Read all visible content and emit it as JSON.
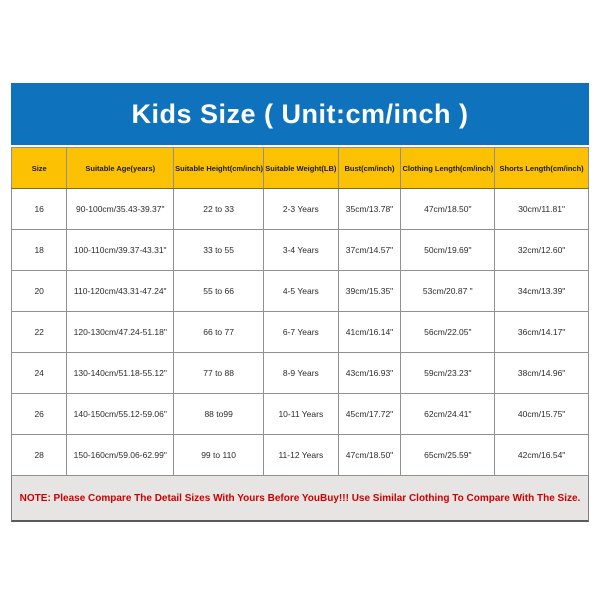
{
  "title": "Kids Size ( Unit:cm/inch )",
  "table": {
    "columns": [
      "Size",
      "Suitable Age(years)",
      "Suitable Height(cm/inch)",
      "Suitable Weight(LB)",
      "Bust(cm/inch)",
      "Clothing Length(cm/inch)",
      "Shorts Length(cm/inch)"
    ],
    "rows": [
      [
        "16",
        "90-100cm/35.43-39.37\"",
        "22 to 33",
        "2-3 Years",
        "35cm/13.78\"",
        "47cm/18.50\"",
        "30cm/11.81\""
      ],
      [
        "18",
        "100-110cm/39.37-43.31\"",
        "33 to 55",
        "3-4 Years",
        "37cm/14.57\"",
        "50cm/19.69\"",
        "32cm/12.60\""
      ],
      [
        "20",
        "110-120cm/43.31-47.24\"",
        "55 to 66",
        "4-5 Years",
        "39cm/15.35\"",
        "53cm/20.87 \"",
        "34cm/13.39\""
      ],
      [
        "22",
        "120-130cm/47.24-51.18\"",
        "66 to 77",
        "6-7 Years",
        "41cm/16.14\"",
        "56cm/22.05\"",
        "36cm/14.17\""
      ],
      [
        "24",
        "130-140cm/51.18-55.12\"",
        "77 to 88",
        "8-9 Years",
        "43cm/16.93\"",
        "59cm/23.23\"",
        "38cm/14.96\""
      ],
      [
        "26",
        "140-150cm/55.12-59.06\"",
        "88 to99",
        "10-11 Years",
        "45cm/17.72\"",
        "62cm/24.41\"",
        "40cm/15.75\""
      ],
      [
        "28",
        "150-160cm/59.06-62.99\"",
        "99 to 110",
        "11-12 Years",
        "47cm/18.50\"",
        "65cm/25.59\"",
        "42cm/16.54\""
      ]
    ]
  },
  "note": "NOTE: Please Compare The Detail Sizes With Yours Before YouBuy!!! Use Similar Clothing To Compare With The Size.",
  "colors": {
    "banner_blue": "#0f72bd",
    "header_yellow": "#fbc102",
    "note_background": "#e7e4e4",
    "note_text_red": "#cc0000",
    "cell_border_gray": "#909090"
  }
}
